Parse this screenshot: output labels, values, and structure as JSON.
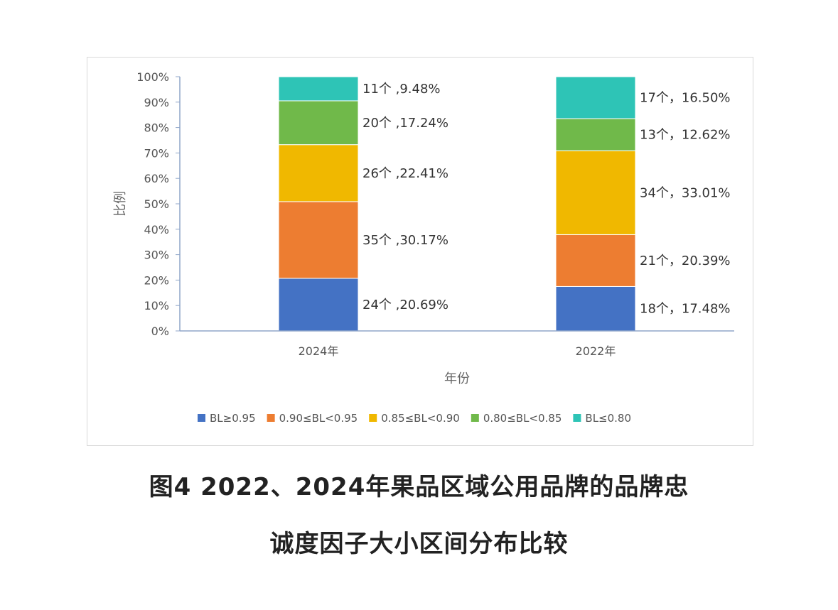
{
  "chart_data": {
    "type": "bar",
    "stacked": true,
    "normalized_percent": true,
    "categories": [
      "2024年",
      "2022年"
    ],
    "xlabel": "年份",
    "ylabel": "比例",
    "ylim": [
      0,
      100
    ],
    "yticks": [
      "0%",
      "10%",
      "20%",
      "30%",
      "40%",
      "50%",
      "60%",
      "70%",
      "80%",
      "90%",
      "100%"
    ],
    "legend_position": "bottom",
    "grid": false,
    "series": [
      {
        "name": "BL≥0.95",
        "color": "#4472C4",
        "values": [
          20.69,
          17.48
        ],
        "labels": [
          "24个 ,20.69%",
          "18个，17.48%"
        ]
      },
      {
        "name": "0.90≤BL<0.95",
        "color": "#ED7D31",
        "values": [
          30.17,
          20.39
        ],
        "labels": [
          "35个 ,30.17%",
          "21个，20.39%"
        ]
      },
      {
        "name": "0.85≤BL<0.90",
        "color": "#F0B800",
        "values": [
          22.41,
          33.01
        ],
        "labels": [
          "26个 ,22.41%",
          "34个，33.01%"
        ]
      },
      {
        "name": "0.80≤BL<0.85",
        "color": "#70B94A",
        "values": [
          17.24,
          12.62
        ],
        "labels": [
          "20个 ,17.24%",
          "13个，12.62%"
        ]
      },
      {
        "name": "BL≤0.80",
        "color": "#2EC4B6",
        "values": [
          9.48,
          16.5
        ],
        "labels": [
          "11个 ,9.48%",
          "17个，16.50%"
        ]
      }
    ]
  },
  "caption": {
    "line1": "图4 2022、2024年果品区域公用品牌的品牌忠",
    "line2": "诚度因子大小区间分布比较"
  }
}
